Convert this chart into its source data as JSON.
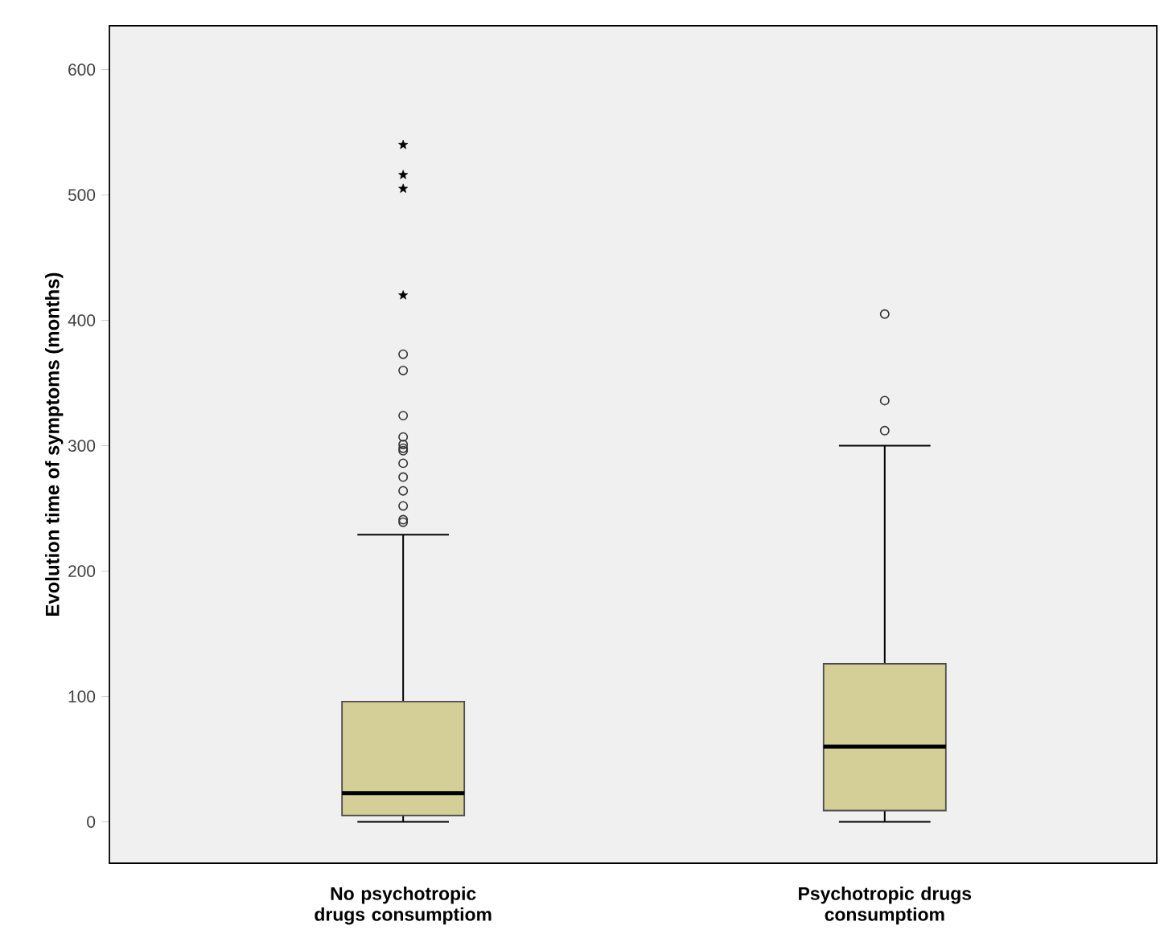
{
  "chart_data": {
    "type": "box",
    "ylabel": "Evolution time of symptoms (months)",
    "categories": [
      "No psychotropic drugs consumptiom",
      "Psychotropic drugs consumptiom"
    ],
    "color": "#d4cf96",
    "marker": "circle",
    "boxes": [
      {
        "low": 0,
        "q1": 5,
        "median": 23,
        "q3": 96,
        "high": 229,
        "outliers": [
          239,
          241,
          252,
          264,
          275,
          286,
          296,
          298,
          301,
          307,
          324,
          360,
          373
        ]
      },
      {
        "low": 0,
        "q1": 9,
        "median": 60,
        "q3": 126,
        "high": 300,
        "outliers": [
          312,
          336,
          405
        ]
      }
    ],
    "series": [
      {
        "type": "scatter",
        "marker": "star",
        "color": "#000000",
        "x": [
          "No psychotropic drugs consumptiom",
          "No psychotropic drugs consumptiom",
          "No psychotropic drugs consumptiom",
          "No psychotropic drugs consumptiom"
        ],
        "values": [
          420,
          505,
          516,
          540
        ]
      }
    ],
    "ylim": [
      -33,
      635
    ],
    "yticks": [
      0,
      100,
      200,
      300,
      400,
      500,
      600
    ]
  }
}
